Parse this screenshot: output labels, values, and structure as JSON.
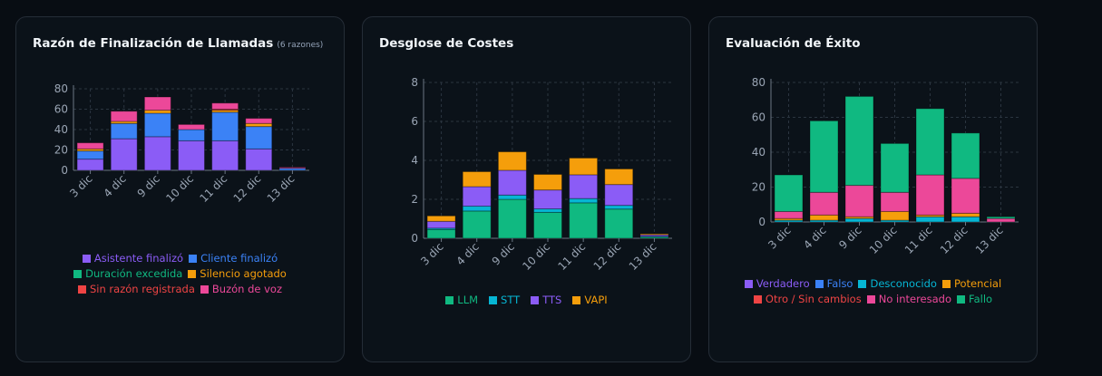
{
  "colors": {
    "purple": "#8b5cf6",
    "blue": "#3b82f6",
    "green": "#10b981",
    "orange": "#f59e0b",
    "red": "#ef4444",
    "pink": "#ec4899",
    "cyan": "#06b6d4"
  },
  "cards": [
    {
      "title": "Razón de Finalización de Llamadas",
      "subtitle": "(6 razones)"
    },
    {
      "title": "Desglose de Costes"
    },
    {
      "title": "Evaluación de Éxito"
    }
  ],
  "chart_data": [
    {
      "type": "bar",
      "stacked": true,
      "categories": [
        "3 dic",
        "4 dic",
        "9 dic",
        "10 dic",
        "11 dic",
        "12 dic",
        "13 dic"
      ],
      "ylim": [
        0,
        80
      ],
      "yticks": [
        0,
        20,
        40,
        60,
        80
      ],
      "grid": true,
      "legend": "bottom",
      "series": [
        {
          "name": "Asistente finalizó",
          "color": "#8b5cf6",
          "values": [
            11,
            31,
            33,
            29,
            29,
            21,
            0
          ]
        },
        {
          "name": "Cliente finalizó",
          "color": "#3b82f6",
          "values": [
            8,
            15,
            23,
            11,
            28,
            22,
            2
          ]
        },
        {
          "name": "Duración excedida",
          "color": "#10b981",
          "values": [
            0,
            0,
            0,
            0,
            0,
            0,
            0
          ]
        },
        {
          "name": "Silencio agotado",
          "color": "#f59e0b",
          "values": [
            2,
            2,
            3,
            0,
            2,
            3,
            0
          ]
        },
        {
          "name": "Sin razón registrada",
          "color": "#ef4444",
          "values": [
            0,
            0,
            0,
            0,
            1,
            0,
            0
          ]
        },
        {
          "name": "Buzón de voz",
          "color": "#ec4899",
          "values": [
            6,
            10,
            13,
            5,
            6,
            5,
            1
          ]
        }
      ]
    },
    {
      "type": "bar",
      "stacked": true,
      "categories": [
        "3 dic",
        "4 dic",
        "9 dic",
        "10 dic",
        "11 dic",
        "12 dic",
        "13 dic"
      ],
      "ylim": [
        0,
        8
      ],
      "yticks": [
        0,
        2,
        4,
        6,
        8
      ],
      "grid": true,
      "legend": "bottom",
      "series": [
        {
          "name": "LLM",
          "color": "#10b981",
          "values": [
            0.45,
            1.4,
            2.0,
            1.33,
            1.82,
            1.5,
            0.07
          ]
        },
        {
          "name": "STT",
          "color": "#06b6d4",
          "values": [
            0.07,
            0.25,
            0.22,
            0.18,
            0.22,
            0.19,
            0.03
          ]
        },
        {
          "name": "TTS",
          "color": "#8b5cf6",
          "values": [
            0.35,
            1.0,
            1.27,
            0.97,
            1.22,
            1.07,
            0.08
          ]
        },
        {
          "name": "VAPI",
          "color": "#f59e0b",
          "values": [
            0.28,
            0.77,
            0.95,
            0.8,
            0.86,
            0.8,
            0.05
          ]
        }
      ]
    },
    {
      "type": "bar",
      "stacked": true,
      "categories": [
        "3 dic",
        "4 dic",
        "9 dic",
        "10 dic",
        "11 dic",
        "12 dic",
        "13 dic"
      ],
      "ylim": [
        0,
        80
      ],
      "yticks": [
        0,
        20,
        40,
        60,
        80
      ],
      "grid": true,
      "legend": "bottom",
      "series": [
        {
          "name": "Verdadero",
          "color": "#8b5cf6",
          "values": [
            0,
            0,
            0,
            0,
            0,
            0,
            0
          ]
        },
        {
          "name": "Falso",
          "color": "#3b82f6",
          "values": [
            0,
            0,
            0,
            0,
            0,
            0,
            0
          ]
        },
        {
          "name": "Desconocido",
          "color": "#06b6d4",
          "values": [
            1,
            1,
            2,
            1,
            3,
            3,
            0
          ]
        },
        {
          "name": "Potencial",
          "color": "#f59e0b",
          "values": [
            1,
            3,
            1,
            5,
            1,
            2,
            0
          ]
        },
        {
          "name": "Otro / Sin cambios",
          "color": "#ef4444",
          "values": [
            0,
            0,
            0,
            0,
            0,
            0,
            0
          ]
        },
        {
          "name": "No interesado",
          "color": "#ec4899",
          "values": [
            4,
            13,
            18,
            11,
            23,
            20,
            2
          ]
        },
        {
          "name": "Fallo",
          "color": "#10b981",
          "values": [
            21,
            41,
            51,
            28,
            38,
            26,
            1
          ]
        }
      ]
    }
  ]
}
